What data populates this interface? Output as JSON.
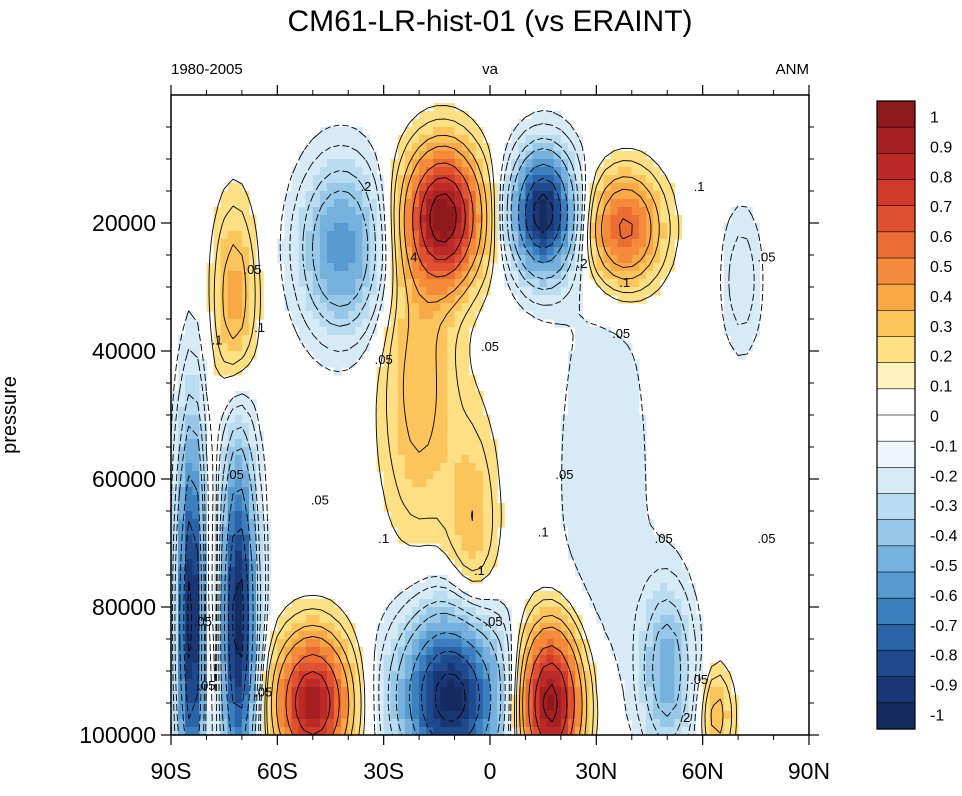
{
  "chart_data": {
    "type": "heatmap",
    "title": "CM61-LR-hist-01  (vs ERAINT)",
    "left_label": "1980-2005",
    "center_label": "va",
    "right_label": "ANM",
    "ylabel": "pressure",
    "xlim": [
      -90,
      90
    ],
    "ylim": [
      0,
      100000
    ],
    "y_reversed": true,
    "x_ticks": [
      {
        "value": -90,
        "label": "90S"
      },
      {
        "value": -60,
        "label": "60S"
      },
      {
        "value": -30,
        "label": "30S"
      },
      {
        "value": 0,
        "label": "0"
      },
      {
        "value": 30,
        "label": "30N"
      },
      {
        "value": 60,
        "label": "60N"
      },
      {
        "value": 90,
        "label": "90N"
      }
    ],
    "y_ticks": [
      {
        "value": 20000,
        "label": "20000"
      },
      {
        "value": 40000,
        "label": "40000"
      },
      {
        "value": 60000,
        "label": "60000"
      },
      {
        "value": 80000,
        "label": "80000"
      },
      {
        "value": 100000,
        "label": "100000"
      }
    ],
    "colorbar": {
      "levels": [
        "1",
        "0.9",
        "0.8",
        "0.7",
        "0.6",
        "0.5",
        "0.4",
        "0.3",
        "0.2",
        "0.1",
        "0",
        "-0.1",
        "-0.2",
        "-0.3",
        "-0.4",
        "-0.5",
        "-0.6",
        "-0.7",
        "-0.8",
        "-0.9",
        "-1"
      ],
      "colors": [
        "#8f1a1e",
        "#a51f23",
        "#bb2a26",
        "#cf3a2b",
        "#e0522f",
        "#ec6d33",
        "#f48a3a",
        "#f8a845",
        "#fbc55c",
        "#fde084",
        "#fff2bf",
        "#ffffff",
        "#ffffff",
        "#eef6fb",
        "#d6ebf6",
        "#b9dcf0",
        "#98c8e8",
        "#76b1dd",
        "#569ad0",
        "#3b7fbe",
        "#2a64a8",
        "#1f4a8e",
        "#1a3775",
        "#152a5e"
      ]
    },
    "features": [
      {
        "lat": -13,
        "p": 19000,
        "value": 1.0,
        "wx": 7,
        "wp": 7000
      },
      {
        "lat": 15,
        "p": 18500,
        "value": -1.0,
        "wx": 6,
        "wp": 6500
      },
      {
        "lat": -42,
        "p": 24000,
        "value": -0.5,
        "wx": 8,
        "wp": 9000
      },
      {
        "lat": -72,
        "p": 32000,
        "value": 0.3,
        "wx": 4,
        "wp": 10000
      },
      {
        "lat": 38,
        "p": 21000,
        "value": 0.55,
        "wx": 7,
        "wp": 6000
      },
      {
        "lat": 71,
        "p": 29000,
        "value": -0.15,
        "wx": 4,
        "wp": 8000
      },
      {
        "lat": -20,
        "p": 45000,
        "value": 0.25,
        "wx": 7,
        "wp": 16000
      },
      {
        "lat": -5,
        "p": 68000,
        "value": 0.2,
        "wx": 5,
        "wp": 12000
      },
      {
        "lat": 32,
        "p": 60000,
        "value": -0.1,
        "wx": 10,
        "wp": 25000
      },
      {
        "lat": -11,
        "p": 94000,
        "value": -1.0,
        "wx": 10,
        "wp": 9000
      },
      {
        "lat": 17,
        "p": 95000,
        "value": 1.0,
        "wx": 6,
        "wp": 8000
      },
      {
        "lat": -50,
        "p": 95000,
        "value": 0.9,
        "wx": 7,
        "wp": 7000
      },
      {
        "lat": -84,
        "p": 82000,
        "value": -1.0,
        "wx": 3,
        "wp": 20000
      },
      {
        "lat": -71,
        "p": 82000,
        "value": -1.0,
        "wx": 3.5,
        "wp": 18000
      },
      {
        "lat": -79,
        "p": 80000,
        "value": 0.35,
        "wx": 2,
        "wp": 15000
      },
      {
        "lat": 50,
        "p": 90000,
        "value": -0.4,
        "wx": 5,
        "wp": 9000
      },
      {
        "lat": 64,
        "p": 97000,
        "value": 0.25,
        "wx": 3,
        "wp": 5000
      }
    ],
    "contour_labels": [
      {
        "lat": -67,
        "p": 28000,
        "text": ".05"
      },
      {
        "lat": -35,
        "p": 15000,
        "text": ".2"
      },
      {
        "lat": -30,
        "p": 42000,
        "text": ".05"
      },
      {
        "lat": -22,
        "p": 26000,
        "text": ".4"
      },
      {
        "lat": -77,
        "p": 39000,
        "text": ".1"
      },
      {
        "lat": -65,
        "p": 37000,
        "text": ".1"
      },
      {
        "lat": -30,
        "p": 70000,
        "text": ".1"
      },
      {
        "lat": -48,
        "p": 64000,
        "text": ".05"
      },
      {
        "lat": 0,
        "p": 40000,
        "text": ".05"
      },
      {
        "lat": 21,
        "p": 60000,
        "text": ".05"
      },
      {
        "lat": 26,
        "p": 27000,
        "text": ".2"
      },
      {
        "lat": 38,
        "p": 30000,
        "text": ".1"
      },
      {
        "lat": 59,
        "p": 15000,
        "text": ".1"
      },
      {
        "lat": 78,
        "p": 26000,
        "text": ".05"
      },
      {
        "lat": 37,
        "p": 38000,
        "text": ".05"
      },
      {
        "lat": 49,
        "p": 70000,
        "text": ".05"
      },
      {
        "lat": 78,
        "p": 70000,
        "text": ".05"
      },
      {
        "lat": 1,
        "p": 83000,
        "text": ".05"
      },
      {
        "lat": -3,
        "p": 75000,
        "text": ".1"
      },
      {
        "lat": 15,
        "p": 69000,
        "text": ".1"
      },
      {
        "lat": -72,
        "p": 60000,
        "text": ".05"
      },
      {
        "lat": -81,
        "p": 83000,
        "text": ".05"
      },
      {
        "lat": -80,
        "p": 93000,
        "text": ".05"
      },
      {
        "lat": -64,
        "p": 94000,
        "text": ".05"
      },
      {
        "lat": 59,
        "p": 92000,
        "text": ".05"
      },
      {
        "lat": 55,
        "p": 98000,
        "text": ".2"
      }
    ]
  }
}
